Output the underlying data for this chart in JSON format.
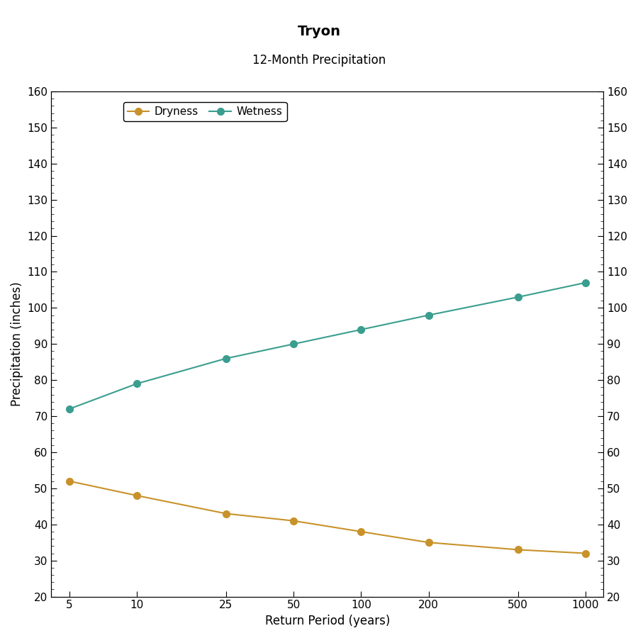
{
  "title": "Tryon",
  "subtitle": "12-Month Precipitation",
  "xlabel": "Return Period (years)",
  "ylabel": "Precipitation (inches)",
  "x_values": [
    5,
    10,
    25,
    50,
    100,
    200,
    500,
    1000
  ],
  "dryness_values": [
    52,
    48,
    43,
    41,
    38,
    35,
    33,
    32
  ],
  "wetness_values": [
    72,
    79,
    86,
    90,
    94,
    98,
    103,
    107
  ],
  "dryness_color": "#C8922A",
  "wetness_color": "#3A9E8F",
  "ylim": [
    20,
    160
  ],
  "yticks": [
    20,
    30,
    40,
    50,
    60,
    70,
    80,
    90,
    100,
    110,
    120,
    130,
    140,
    150,
    160
  ],
  "legend_loc": "upper left",
  "title_fontsize": 14,
  "subtitle_fontsize": 12,
  "label_fontsize": 12,
  "tick_fontsize": 11,
  "line_width": 1.5,
  "marker_size": 7,
  "background_color": "#FFFFFF",
  "plot_bg_color": "#FFFFFF",
  "grid": false
}
